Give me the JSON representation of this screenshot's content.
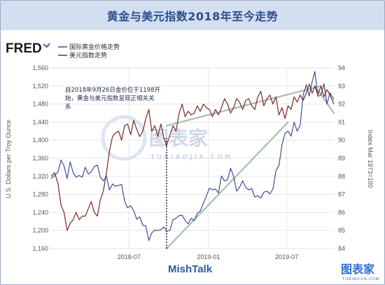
{
  "title": "黄金与美元指数2018年至今走势",
  "fred_logo": "FRED",
  "colors": {
    "gold": "#3d4e8f",
    "dollar": "#7b2a22",
    "trend": "#a6bfb2",
    "dotted": "#1a1a1a"
  },
  "watermark": {
    "main": "图表家",
    "sub": "TUBIAOJIA.COM"
  },
  "footer": {
    "source": "MishTalk",
    "brand": "图表家",
    "brand_sub": "TUBIAOJIA.COM"
  },
  "annotation": {
    "lines": [
      "自2018年9月26日金价位于1198开",
      "始，黄金与美元指数呈现正相关关",
      "系"
    ]
  },
  "chart_data": {
    "type": "line",
    "x_ticks": [
      "2018-07",
      "2019-01",
      "2019-07"
    ],
    "y_left": {
      "label": "U.S. Dollars per Troy Ounce",
      "ticks": [
        1160,
        1200,
        1240,
        1280,
        1320,
        1360,
        1400,
        1440,
        1480,
        1520,
        1560
      ],
      "range": [
        1160,
        1560
      ]
    },
    "y_right": {
      "label": "Index Mar 1973=100",
      "ticks": [
        84,
        85,
        86,
        87,
        88,
        89,
        90,
        91,
        92,
        93,
        94
      ],
      "range": [
        84,
        94
      ]
    },
    "x_range": [
      "2018-01-02",
      "2019-10-18"
    ],
    "marker_date": "2018-09-26",
    "series": [
      {
        "name": "国际黄金价格走势",
        "axis": "left",
        "points": [
          [
            "2018-01-02",
            1315
          ],
          [
            "2018-01-10",
            1322
          ],
          [
            "2018-01-18",
            1330
          ],
          [
            "2018-01-25",
            1356
          ],
          [
            "2018-02-01",
            1343
          ],
          [
            "2018-02-08",
            1315
          ],
          [
            "2018-02-15",
            1352
          ],
          [
            "2018-02-22",
            1328
          ],
          [
            "2018-03-01",
            1318
          ],
          [
            "2018-03-08",
            1322
          ],
          [
            "2018-03-15",
            1318
          ],
          [
            "2018-03-22",
            1340
          ],
          [
            "2018-03-29",
            1325
          ],
          [
            "2018-04-05",
            1330
          ],
          [
            "2018-04-12",
            1342
          ],
          [
            "2018-04-19",
            1345
          ],
          [
            "2018-04-26",
            1318
          ],
          [
            "2018-05-03",
            1310
          ],
          [
            "2018-05-10",
            1320
          ],
          [
            "2018-05-17",
            1290
          ],
          [
            "2018-05-24",
            1303
          ],
          [
            "2018-05-31",
            1298
          ],
          [
            "2018-06-07",
            1300
          ],
          [
            "2018-06-14",
            1302
          ],
          [
            "2018-06-21",
            1265
          ],
          [
            "2018-06-28",
            1250
          ],
          [
            "2018-07-05",
            1255
          ],
          [
            "2018-07-12",
            1244
          ],
          [
            "2018-07-19",
            1225
          ],
          [
            "2018-07-26",
            1230
          ],
          [
            "2018-08-02",
            1212
          ],
          [
            "2018-08-09",
            1210
          ],
          [
            "2018-08-16",
            1178
          ],
          [
            "2018-08-23",
            1195
          ],
          [
            "2018-08-30",
            1201
          ],
          [
            "2018-09-06",
            1200
          ],
          [
            "2018-09-13",
            1202
          ],
          [
            "2018-09-20",
            1208
          ],
          [
            "2018-09-26",
            1198
          ],
          [
            "2018-10-04",
            1201
          ],
          [
            "2018-10-11",
            1224
          ],
          [
            "2018-10-18",
            1227
          ],
          [
            "2018-10-25",
            1233
          ],
          [
            "2018-11-01",
            1234
          ],
          [
            "2018-11-08",
            1222
          ],
          [
            "2018-11-15",
            1215
          ],
          [
            "2018-11-22",
            1227
          ],
          [
            "2018-11-29",
            1222
          ],
          [
            "2018-12-06",
            1238
          ],
          [
            "2018-12-13",
            1243
          ],
          [
            "2018-12-20",
            1260
          ],
          [
            "2018-12-27",
            1276
          ],
          [
            "2019-01-03",
            1294
          ],
          [
            "2019-01-10",
            1290
          ],
          [
            "2019-01-17",
            1292
          ],
          [
            "2019-01-24",
            1283
          ],
          [
            "2019-01-31",
            1321
          ],
          [
            "2019-02-07",
            1310
          ],
          [
            "2019-02-14",
            1312
          ],
          [
            "2019-02-21",
            1338
          ],
          [
            "2019-02-28",
            1320
          ],
          [
            "2019-03-07",
            1287
          ],
          [
            "2019-03-14",
            1296
          ],
          [
            "2019-03-21",
            1310
          ],
          [
            "2019-03-28",
            1295
          ],
          [
            "2019-04-04",
            1290
          ],
          [
            "2019-04-11",
            1293
          ],
          [
            "2019-04-18",
            1274
          ],
          [
            "2019-04-25",
            1277
          ],
          [
            "2019-05-02",
            1272
          ],
          [
            "2019-05-09",
            1285
          ],
          [
            "2019-05-16",
            1287
          ],
          [
            "2019-05-23",
            1281
          ],
          [
            "2019-05-30",
            1292
          ],
          [
            "2019-06-06",
            1332
          ],
          [
            "2019-06-13",
            1344
          ],
          [
            "2019-06-20",
            1390
          ],
          [
            "2019-06-27",
            1415
          ],
          [
            "2019-07-04",
            1420
          ],
          [
            "2019-07-11",
            1409
          ],
          [
            "2019-07-18",
            1440
          ],
          [
            "2019-07-25",
            1420
          ],
          [
            "2019-08-01",
            1433
          ],
          [
            "2019-08-08",
            1500
          ],
          [
            "2019-08-15",
            1523
          ],
          [
            "2019-08-22",
            1498
          ],
          [
            "2019-08-29",
            1530
          ],
          [
            "2019-09-04",
            1552
          ],
          [
            "2019-09-11",
            1497
          ],
          [
            "2019-09-18",
            1500
          ],
          [
            "2019-09-25",
            1525
          ],
          [
            "2019-10-02",
            1480
          ],
          [
            "2019-10-09",
            1505
          ],
          [
            "2019-10-18",
            1490
          ]
        ]
      },
      {
        "name": "美元指数走势",
        "axis": "right",
        "points": [
          [
            "2018-01-02",
            88.0
          ],
          [
            "2018-01-10",
            88.2
          ],
          [
            "2018-01-18",
            87.6
          ],
          [
            "2018-01-25",
            86.4
          ],
          [
            "2018-02-01",
            86.0
          ],
          [
            "2018-02-08",
            85.0
          ],
          [
            "2018-02-15",
            85.4
          ],
          [
            "2018-02-22",
            85.6
          ],
          [
            "2018-03-01",
            86.0
          ],
          [
            "2018-03-08",
            85.6
          ],
          [
            "2018-03-15",
            85.8
          ],
          [
            "2018-03-22",
            85.8
          ],
          [
            "2018-03-29",
            86.2
          ],
          [
            "2018-04-05",
            86.6
          ],
          [
            "2018-04-12",
            86.0
          ],
          [
            "2018-04-19",
            85.8
          ],
          [
            "2018-04-26",
            86.7
          ],
          [
            "2018-05-03",
            87.2
          ],
          [
            "2018-05-10",
            88.2
          ],
          [
            "2018-05-17",
            89.4
          ],
          [
            "2018-05-24",
            90.2
          ],
          [
            "2018-05-31",
            90.4
          ],
          [
            "2018-06-07",
            90.5
          ],
          [
            "2018-06-14",
            90.0
          ],
          [
            "2018-06-21",
            90.8
          ],
          [
            "2018-06-28",
            90.9
          ],
          [
            "2018-07-05",
            90.3
          ],
          [
            "2018-07-12",
            91.1
          ],
          [
            "2018-07-19",
            90.6
          ],
          [
            "2018-07-26",
            90.2
          ],
          [
            "2018-08-02",
            90.5
          ],
          [
            "2018-08-09",
            91.2
          ],
          [
            "2018-08-16",
            91.7
          ],
          [
            "2018-08-23",
            90.5
          ],
          [
            "2018-08-30",
            90.8
          ],
          [
            "2018-09-06",
            90.2
          ],
          [
            "2018-09-13",
            90.9
          ],
          [
            "2018-09-20",
            90.1
          ],
          [
            "2018-09-26",
            89.7
          ],
          [
            "2018-10-04",
            90.3
          ],
          [
            "2018-10-11",
            90.8
          ],
          [
            "2018-10-18",
            90.5
          ],
          [
            "2018-10-25",
            91.5
          ],
          [
            "2018-11-01",
            92.0
          ],
          [
            "2018-11-08",
            91.3
          ],
          [
            "2018-11-15",
            91.6
          ],
          [
            "2018-11-22",
            91.4
          ],
          [
            "2018-11-29",
            91.5
          ],
          [
            "2018-12-06",
            91.9
          ],
          [
            "2018-12-13",
            91.6
          ],
          [
            "2018-12-20",
            92.0
          ],
          [
            "2018-12-27",
            91.8
          ],
          [
            "2019-01-03",
            91.7
          ],
          [
            "2019-01-10",
            91.3
          ],
          [
            "2019-01-17",
            91.7
          ],
          [
            "2019-01-24",
            91.4
          ],
          [
            "2019-01-31",
            91.8
          ],
          [
            "2019-02-07",
            92.3
          ],
          [
            "2019-02-14",
            92.0
          ],
          [
            "2019-02-21",
            91.5
          ],
          [
            "2019-02-28",
            91.8
          ],
          [
            "2019-03-07",
            92.3
          ],
          [
            "2019-03-14",
            92.1
          ],
          [
            "2019-03-21",
            91.7
          ],
          [
            "2019-03-28",
            92.2
          ],
          [
            "2019-04-04",
            92.3
          ],
          [
            "2019-04-11",
            91.9
          ],
          [
            "2019-04-18",
            91.7
          ],
          [
            "2019-04-25",
            92.4
          ],
          [
            "2019-05-02",
            92.7
          ],
          [
            "2019-05-09",
            91.9
          ],
          [
            "2019-05-16",
            92.3
          ],
          [
            "2019-05-23",
            92.5
          ],
          [
            "2019-05-30",
            92.0
          ],
          [
            "2019-06-06",
            92.4
          ],
          [
            "2019-06-13",
            91.4
          ],
          [
            "2019-06-20",
            91.8
          ],
          [
            "2019-06-27",
            91.2
          ],
          [
            "2019-07-04",
            91.9
          ],
          [
            "2019-07-11",
            91.7
          ],
          [
            "2019-07-18",
            92.4
          ],
          [
            "2019-07-25",
            92.1
          ],
          [
            "2019-08-01",
            92.5
          ],
          [
            "2019-08-08",
            92.2
          ],
          [
            "2019-08-15",
            92.6
          ],
          [
            "2019-08-22",
            93.1
          ],
          [
            "2019-08-29",
            92.6
          ],
          [
            "2019-09-04",
            93.0
          ],
          [
            "2019-09-11",
            92.5
          ],
          [
            "2019-09-18",
            93.0
          ],
          [
            "2019-09-25",
            92.4
          ],
          [
            "2019-10-02",
            92.8
          ],
          [
            "2019-10-09",
            92.5
          ],
          [
            "2019-10-18",
            92.0
          ]
        ]
      }
    ],
    "trend_lines": [
      {
        "axis": "right",
        "from": [
          "2018-09-26",
          90.8
        ],
        "to": [
          "2019-09-18",
          93.0
        ]
      },
      {
        "axis": "left",
        "from": [
          "2018-09-26",
          1160
        ],
        "to": [
          "2019-07-04",
          1440
        ]
      },
      {
        "axis": "right",
        "from": [
          "2019-09-04",
          93.0
        ],
        "to": [
          "2019-10-18",
          91.5
        ]
      }
    ]
  }
}
